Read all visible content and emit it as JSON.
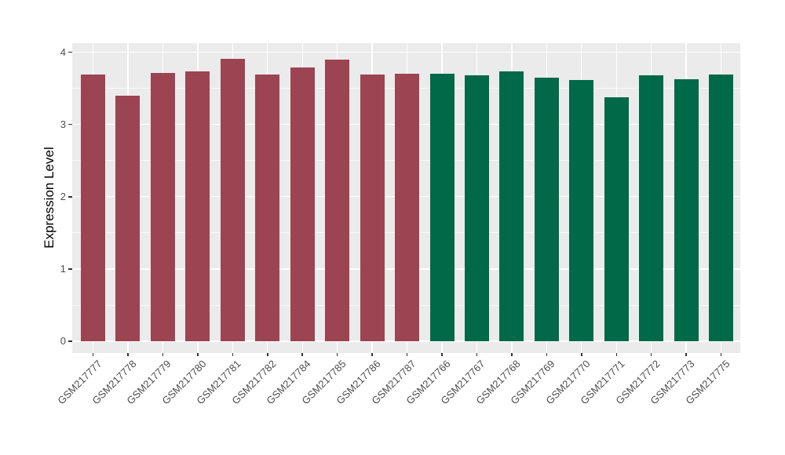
{
  "chart_data": {
    "type": "bar",
    "title": "",
    "xlabel": "",
    "ylabel": "Expression Level",
    "ylim": [
      0,
      4.13
    ],
    "yticks": [
      0,
      1,
      2,
      3,
      4
    ],
    "yticks_minor": [
      0.5,
      1.5,
      2.5,
      3.5
    ],
    "grid": "white major and minor horizontal lines plus vertical category lines on gray panel",
    "legend_position": "none",
    "categories": [
      "GSM217777",
      "GSM217778",
      "GSM217779",
      "GSM217780",
      "GSM217781",
      "GSM217782",
      "GSM217784",
      "GSM217785",
      "GSM217786",
      "GSM217787",
      "GSM217766",
      "GSM217767",
      "GSM217768",
      "GSM217769",
      "GSM217770",
      "GSM217771",
      "GSM217772",
      "GSM217773",
      "GSM217775"
    ],
    "values": [
      3.69,
      3.4,
      3.71,
      3.74,
      3.91,
      3.69,
      3.79,
      3.9,
      3.69,
      3.7,
      3.7,
      3.68,
      3.74,
      3.65,
      3.62,
      3.38,
      3.68,
      3.63,
      3.69
    ],
    "groups": [
      "maroon",
      "maroon",
      "maroon",
      "maroon",
      "maroon",
      "maroon",
      "maroon",
      "maroon",
      "maroon",
      "maroon",
      "green",
      "green",
      "green",
      "green",
      "green",
      "green",
      "green",
      "green",
      "green"
    ],
    "group_colors": {
      "maroon": "#9C4452",
      "green": "#006947"
    },
    "colors": {
      "figure_background": "#FFFFFF",
      "panel_background": "#EBEBEB",
      "gridline": "#FFFFFF",
      "tick_mark": "#333333",
      "tick_label": "#4D4D4D",
      "axis_title": "#000000"
    }
  }
}
